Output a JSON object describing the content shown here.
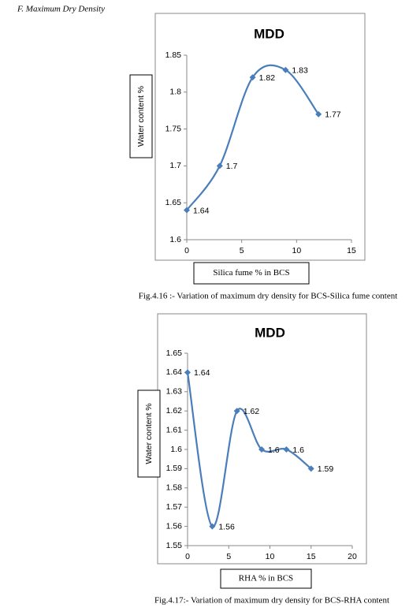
{
  "heading": "F.    Maximum Dry Density",
  "chart_data": [
    {
      "type": "line",
      "title": "MDD",
      "x_label": "Silica fume %  in BCS",
      "y_label": "Water content %",
      "caption": "Fig.4.16 :- Variation of maximum dry density for BCS-Silica fume content",
      "x": [
        0,
        3,
        6,
        9,
        12
      ],
      "values": [
        1.64,
        1.7,
        1.82,
        1.83,
        1.77
      ],
      "color": "#4a7ebb",
      "smooth": true,
      "xlim": [
        0,
        15
      ],
      "xticks": [
        0,
        5,
        10,
        15
      ],
      "ylim": [
        1.6,
        1.85
      ],
      "yticks": [
        1.6,
        1.65,
        1.7,
        1.75,
        1.8,
        1.85
      ]
    },
    {
      "type": "line",
      "title": "MDD",
      "x_label": "RHA % in BCS",
      "y_label": "Water content %",
      "caption": "Fig.4.17:- Variation of maximum dry density for BCS-RHA content",
      "x": [
        0,
        3,
        6,
        9,
        12,
        15
      ],
      "values": [
        1.64,
        1.56,
        1.62,
        1.6,
        1.6,
        1.59
      ],
      "color": "#4a7ebb",
      "smooth": true,
      "xlim": [
        0,
        20
      ],
      "xticks": [
        0,
        5,
        10,
        15,
        20
      ],
      "ylim": [
        1.55,
        1.65
      ],
      "yticks": [
        1.55,
        1.56,
        1.57,
        1.58,
        1.59,
        1.6,
        1.61,
        1.62,
        1.63,
        1.64,
        1.65
      ]
    }
  ]
}
